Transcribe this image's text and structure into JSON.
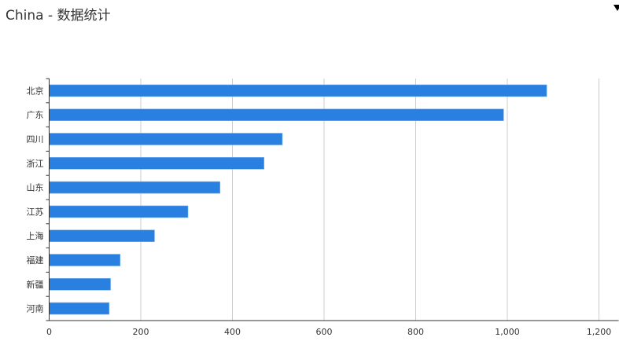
{
  "title": "China - 数据统计",
  "menu_icon": "triangle-down-icon",
  "chart_data": {
    "type": "bar",
    "orientation": "horizontal",
    "title": "China - 数据统计",
    "categories": [
      "北京",
      "广东",
      "四川",
      "浙江",
      "山东",
      "江苏",
      "上海",
      "福建",
      "新疆",
      "河南"
    ],
    "values": [
      1086,
      992,
      509,
      469,
      373,
      303,
      230,
      155,
      134,
      131
    ],
    "xlim": [
      0,
      1200
    ],
    "xticks": [
      0,
      200,
      400,
      600,
      800,
      1000,
      1200
    ],
    "xtick_labels": [
      "0",
      "200",
      "400",
      "600",
      "800",
      "1,000",
      "1,200"
    ],
    "grid": true,
    "bar_color": "#2980e0"
  }
}
